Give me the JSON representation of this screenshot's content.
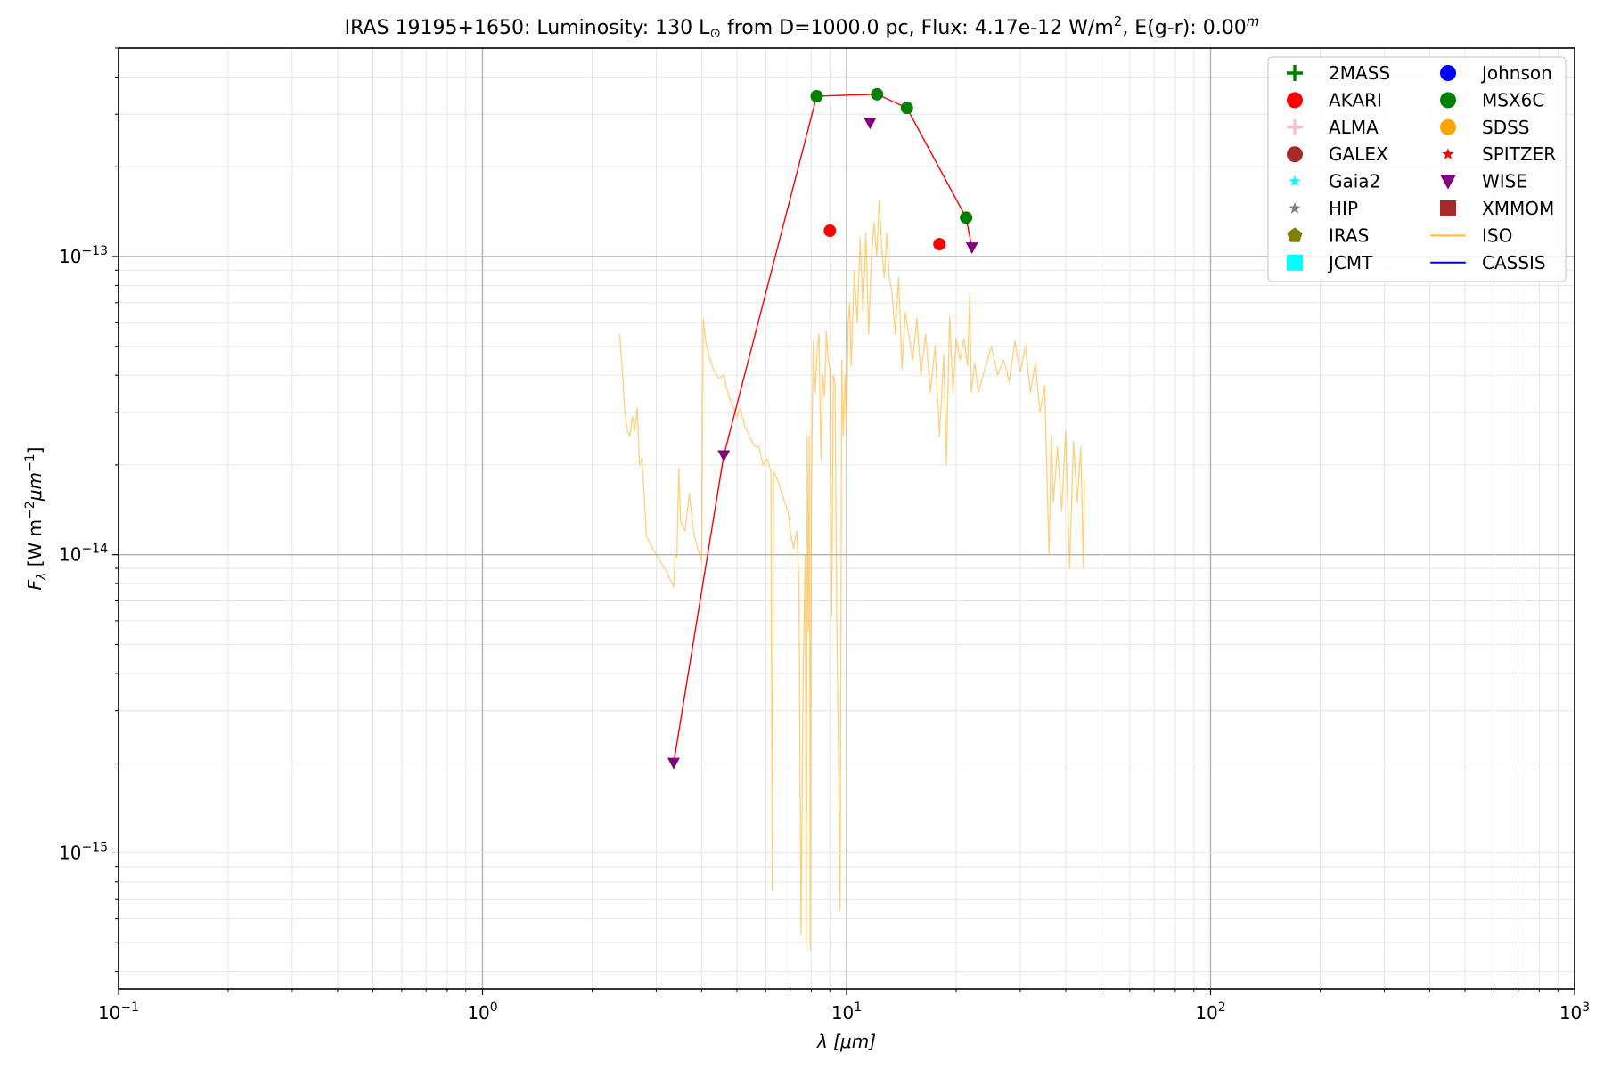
{
  "chart_data": {
    "type": "scatter",
    "title": {
      "object": "IRAS 19195+1650:",
      "lum_label": "Luminosity: 130 L",
      "sun_symbol": "⊙",
      "from_text": " from D=1000.0 pc, Flux: 4.17e-12 W/m",
      "flux_exp": "2",
      "ext_text": ", E(g-r): 0.00",
      "ext_sup": "m"
    },
    "xlabel": {
      "sym": "λ",
      "unit": " [μm]"
    },
    "ylabel": {
      "sym": "F",
      "sub": "λ",
      "unit": " [W m",
      "e1": "−2",
      "mid": "μm",
      "e2": "−1",
      "end": "]"
    },
    "x_scale": "log",
    "y_scale": "log",
    "xlim": [
      0.1,
      1000
    ],
    "ylim": [
      3.5e-16,
      5e-13
    ],
    "grid": true,
    "x_ticks": [
      {
        "value": 0.1,
        "base": "10",
        "exp": "−1"
      },
      {
        "value": 1,
        "base": "10",
        "exp": "0"
      },
      {
        "value": 10,
        "base": "10",
        "exp": "1"
      },
      {
        "value": 100,
        "base": "10",
        "exp": "2"
      },
      {
        "value": 1000,
        "base": "10",
        "exp": "3"
      }
    ],
    "y_ticks": [
      {
        "value": 1e-15,
        "base": "10",
        "exp": "−15"
      },
      {
        "value": 1e-14,
        "base": "10",
        "exp": "−14"
      },
      {
        "value": 1e-13,
        "base": "10",
        "exp": "−13"
      }
    ],
    "legend": {
      "placement": "top-right",
      "columns": 2,
      "entries": [
        {
          "name": "2MASS",
          "marker": "plus",
          "color": "#008000"
        },
        {
          "name": "AKARI",
          "marker": "circle",
          "color": "#ff0000"
        },
        {
          "name": "ALMA",
          "marker": "plus",
          "color": "#ffc0cb"
        },
        {
          "name": "GALEX",
          "marker": "circle",
          "color": "#a52a2a"
        },
        {
          "name": "Gaia2",
          "marker": "star",
          "color": "#00ffff"
        },
        {
          "name": "HIP",
          "marker": "star",
          "color": "#808080"
        },
        {
          "name": "IRAS",
          "marker": "pentagon",
          "color": "#808000"
        },
        {
          "name": "JCMT",
          "marker": "square",
          "color": "#00ffff"
        },
        {
          "name": "Johnson",
          "marker": "circle",
          "color": "#0000ff"
        },
        {
          "name": "MSX6C",
          "marker": "circle",
          "color": "#008000"
        },
        {
          "name": "SDSS",
          "marker": "circle",
          "color": "#ffa500"
        },
        {
          "name": "SPITZER",
          "marker": "star",
          "color": "#ff0000"
        },
        {
          "name": "WISE",
          "marker": "triangle_down",
          "color": "#800080"
        },
        {
          "name": "XMMOM",
          "marker": "square",
          "color": "#a52a2a"
        },
        {
          "name": "ISO",
          "marker": "line",
          "color": "#ffb732"
        },
        {
          "name": "CASSIS",
          "marker": "line",
          "color": "#0000cd"
        }
      ]
    },
    "sed_line": {
      "color": "#ff0000",
      "points": [
        [
          3.35,
          2e-15
        ],
        [
          4.6,
          2.15e-14
        ],
        [
          8.28,
          3.45e-13
        ],
        [
          12.13,
          3.5e-13
        ],
        [
          14.65,
          3.15e-13
        ],
        [
          21.3,
          1.35e-13
        ],
        [
          22.1,
          1.07e-13
        ]
      ]
    },
    "series": [
      {
        "name": "MSX6C",
        "marker": "circle",
        "color": "#008000",
        "points": [
          [
            8.28,
            3.45e-13
          ],
          [
            12.13,
            3.5e-13
          ],
          [
            14.65,
            3.15e-13
          ],
          [
            21.3,
            1.35e-13
          ]
        ]
      },
      {
        "name": "AKARI",
        "marker": "circle",
        "color": "#ff0000",
        "points": [
          [
            9.0,
            1.22e-13
          ],
          [
            18.0,
            1.1e-13
          ]
        ]
      },
      {
        "name": "WISE",
        "marker": "triangle_down",
        "color": "#800080",
        "points": [
          [
            3.35,
            2e-15
          ],
          [
            4.6,
            2.15e-14
          ],
          [
            11.6,
            2.8e-13
          ],
          [
            22.1,
            1.07e-13
          ]
        ]
      }
    ],
    "iso_spectrum": {
      "name": "ISO",
      "color": "#ffb732",
      "points": [
        [
          2.38,
          5.5e-14
        ],
        [
          2.42,
          4.2e-14
        ],
        [
          2.46,
          3e-14
        ],
        [
          2.5,
          2.6e-14
        ],
        [
          2.54,
          2.5e-14
        ],
        [
          2.58,
          2.9e-14
        ],
        [
          2.62,
          2.6e-14
        ],
        [
          2.66,
          3.1e-14
        ],
        [
          2.7,
          2e-14
        ],
        [
          2.74,
          2.1e-14
        ],
        [
          2.78,
          1.6e-14
        ],
        [
          2.82,
          1.15e-14
        ],
        [
          3.0,
          1e-14
        ],
        [
          3.2,
          8.8e-15
        ],
        [
          3.35,
          7.8e-15
        ],
        [
          3.38,
          1e-14
        ],
        [
          3.42,
          9.8e-15
        ],
        [
          3.46,
          1.95e-14
        ],
        [
          3.5,
          1.3e-14
        ],
        [
          3.6,
          1.2e-14
        ],
        [
          3.7,
          1.6e-14
        ],
        [
          3.8,
          1.2e-14
        ],
        [
          3.9,
          1.05e-14
        ],
        [
          4.0,
          9.5e-15
        ],
        [
          4.04,
          6.2e-14
        ],
        [
          4.1,
          5.2e-14
        ],
        [
          4.2,
          4.6e-14
        ],
        [
          4.3,
          4.2e-14
        ],
        [
          4.45,
          3.9e-14
        ],
        [
          4.6,
          4e-14
        ],
        [
          4.75,
          3.4e-14
        ],
        [
          4.9,
          3.1e-14
        ],
        [
          5.0,
          2.9e-14
        ],
        [
          5.1,
          3.1e-14
        ],
        [
          5.25,
          2.7e-14
        ],
        [
          5.45,
          2.45e-14
        ],
        [
          5.6,
          2.3e-14
        ],
        [
          5.75,
          2.3e-14
        ],
        [
          5.9,
          2e-14
        ],
        [
          6.05,
          2.1e-14
        ],
        [
          6.2,
          1.9e-14
        ],
        [
          6.25,
          7.5e-16
        ],
        [
          6.3,
          1.9e-14
        ],
        [
          6.5,
          1.75e-14
        ],
        [
          6.7,
          1.55e-14
        ],
        [
          6.9,
          1.4e-14
        ],
        [
          7.0,
          1.2e-14
        ],
        [
          7.15,
          1.05e-14
        ],
        [
          7.3,
          1.2e-14
        ],
        [
          7.4,
          8e-15
        ],
        [
          7.5,
          5.3e-16
        ],
        [
          7.6,
          4e-15
        ],
        [
          7.7,
          1e-14
        ],
        [
          7.75,
          5e-16
        ],
        [
          7.8,
          2.5e-14
        ],
        [
          7.85,
          5.5e-15
        ],
        [
          7.9,
          2.5e-14
        ],
        [
          7.95,
          4.7e-16
        ],
        [
          8.0,
          1.5e-14
        ],
        [
          8.1,
          5.2e-14
        ],
        [
          8.2,
          3.5e-14
        ],
        [
          8.3,
          4.8e-14
        ],
        [
          8.4,
          5.5e-14
        ],
        [
          8.5,
          2.1e-14
        ],
        [
          8.6,
          4e-14
        ],
        [
          8.7,
          3.4e-14
        ],
        [
          8.8,
          5.6e-14
        ],
        [
          8.9,
          4.5e-14
        ],
        [
          9.0,
          4.2e-14
        ],
        [
          9.1,
          6.2e-15
        ],
        [
          9.2,
          4e-14
        ],
        [
          9.3,
          3.8e-14
        ],
        [
          9.4,
          5.9e-15
        ],
        [
          9.5,
          2.3e-15
        ],
        [
          9.6,
          6.5e-16
        ],
        [
          9.7,
          4.5e-14
        ],
        [
          9.8,
          2.5e-14
        ],
        [
          9.9,
          4e-14
        ],
        [
          10.0,
          2.7e-14
        ],
        [
          10.1,
          6e-14
        ],
        [
          10.2,
          7e-14
        ],
        [
          10.3,
          4.3e-14
        ],
        [
          10.5,
          9e-14
        ],
        [
          10.7,
          6e-14
        ],
        [
          10.9,
          1.15e-13
        ],
        [
          11.1,
          6.5e-14
        ],
        [
          11.3,
          1.2e-13
        ],
        [
          11.5,
          5.5e-14
        ],
        [
          11.7,
          1e-13
        ],
        [
          11.9,
          1.3e-13
        ],
        [
          12.1,
          1e-13
        ],
        [
          12.3,
          1.55e-13
        ],
        [
          12.5,
          1.05e-13
        ],
        [
          12.7,
          8.5e-14
        ],
        [
          12.9,
          1.2e-13
        ],
        [
          13.1,
          8.5e-14
        ],
        [
          13.3,
          7.8e-14
        ],
        [
          13.6,
          5.5e-14
        ],
        [
          13.9,
          8.5e-14
        ],
        [
          14.2,
          4.2e-14
        ],
        [
          14.5,
          6.5e-14
        ],
        [
          14.8,
          5.5e-14
        ],
        [
          15.2,
          4.5e-14
        ],
        [
          15.6,
          6.2e-14
        ],
        [
          16.0,
          4e-14
        ],
        [
          16.5,
          5.5e-14
        ],
        [
          17.0,
          3.5e-14
        ],
        [
          17.5,
          5e-14
        ],
        [
          18.0,
          2.5e-14
        ],
        [
          18.5,
          4.7e-14
        ],
        [
          18.8,
          2e-14
        ],
        [
          19.2,
          6.3e-14
        ],
        [
          19.6,
          3.5e-14
        ],
        [
          20.0,
          5.3e-14
        ],
        [
          20.5,
          4.5e-14
        ],
        [
          21.0,
          5.3e-14
        ],
        [
          21.5,
          4.3e-14
        ],
        [
          21.8,
          7.5e-14
        ],
        [
          22.0,
          3.5e-14
        ],
        [
          22.5,
          4.4e-14
        ],
        [
          23.0,
          3.5e-14
        ],
        [
          24.0,
          4.2e-14
        ],
        [
          25.0,
          5e-14
        ],
        [
          26.0,
          4e-14
        ],
        [
          27.0,
          4.5e-14
        ],
        [
          28.0,
          3.8e-14
        ],
        [
          29.0,
          5.2e-14
        ],
        [
          30.0,
          4.1e-14
        ],
        [
          31.0,
          5e-14
        ],
        [
          32.0,
          3.5e-14
        ],
        [
          33.0,
          4.4e-14
        ],
        [
          34.0,
          3e-14
        ],
        [
          35.0,
          3.7e-14
        ],
        [
          36.0,
          1e-14
        ],
        [
          36.5,
          2.5e-14
        ],
        [
          37.0,
          1.5e-14
        ],
        [
          38.0,
          2.3e-14
        ],
        [
          39.0,
          1.4e-14
        ],
        [
          40.0,
          2.6e-14
        ],
        [
          41.0,
          9e-15
        ],
        [
          42.0,
          2.4e-14
        ],
        [
          43.0,
          1.5e-14
        ],
        [
          44.0,
          2.3e-14
        ],
        [
          44.7,
          9e-15
        ],
        [
          45.0,
          1.8e-14
        ]
      ]
    }
  }
}
